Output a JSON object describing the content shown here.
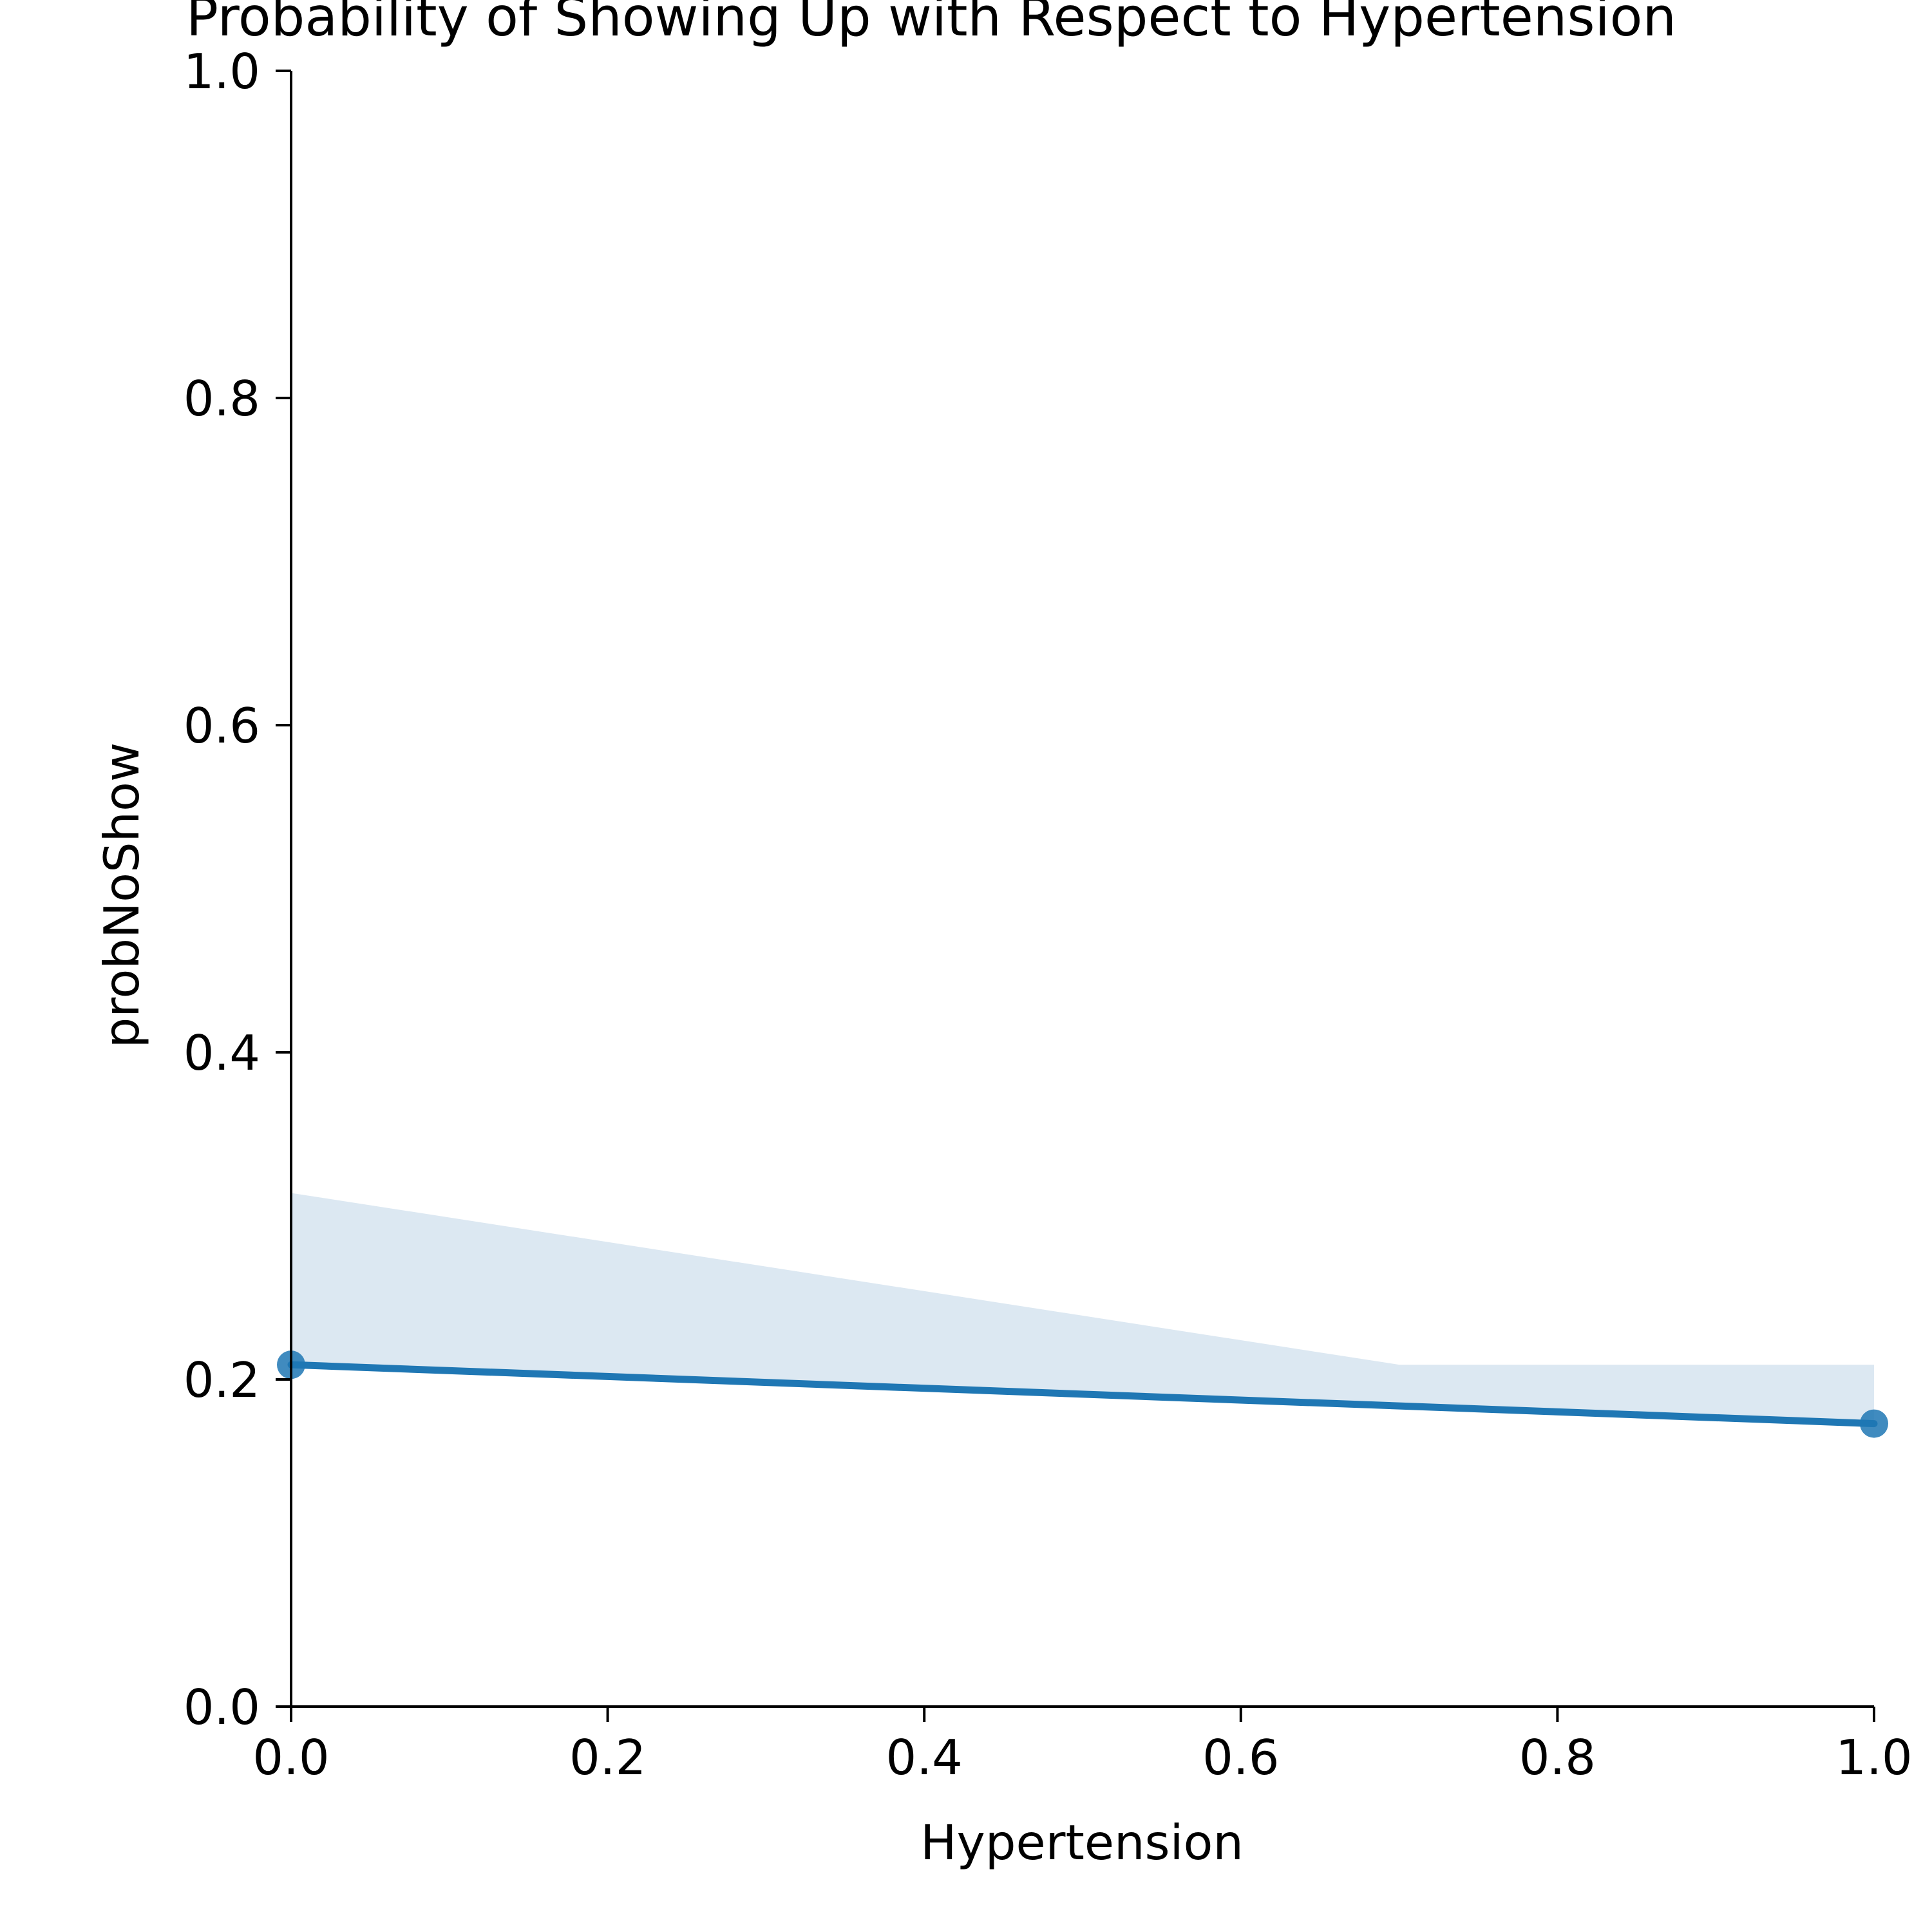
{
  "chart_data": {
    "type": "line",
    "title": "Probability of Showing Up with Respect to Hypertension",
    "xlabel": "Hypertension",
    "ylabel": "probNoShow",
    "xlim": [
      0.0,
      1.0
    ],
    "ylim": [
      0.0,
      1.0
    ],
    "x_ticks": [
      "0.0",
      "0.2",
      "0.4",
      "0.6",
      "0.8",
      "1.0"
    ],
    "y_ticks": [
      "0.0",
      "0.2",
      "0.4",
      "0.6",
      "0.8",
      "1.0"
    ],
    "grid": false,
    "legend": "none",
    "series": [
      {
        "x": [
          0.0,
          1.0
        ],
        "y": [
          0.209,
          0.173
        ],
        "color": "#1f77b4"
      }
    ],
    "confidence_band": {
      "x": [
        0.0,
        0.7,
        1.0
      ],
      "upper": [
        0.314,
        0.209,
        0.209
      ],
      "lower": [
        0.209,
        0.182,
        0.173
      ],
      "color": "#dce8f2"
    }
  }
}
